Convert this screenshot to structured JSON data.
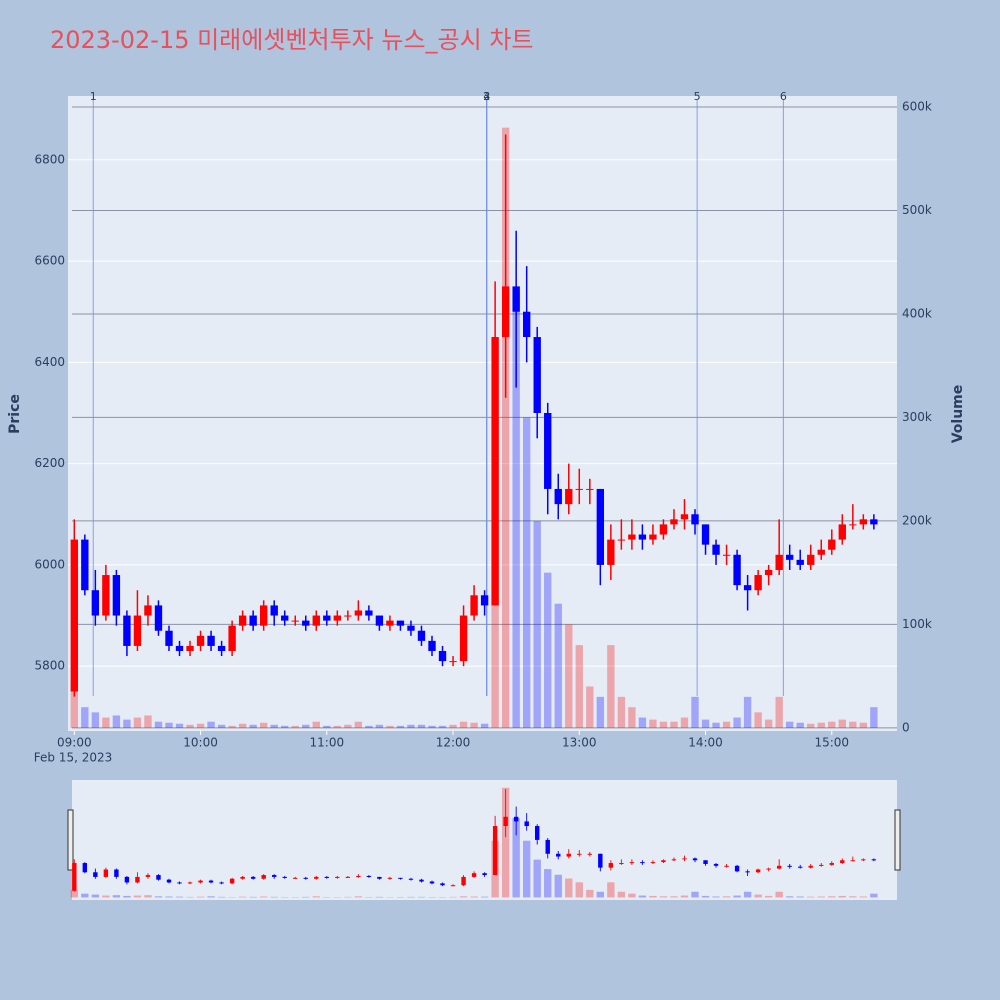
{
  "chart_data": {
    "type": "candlestick",
    "title": "2023-02-15 미래에셋벤처투자 뉴스_공시 차트",
    "y_label": "Price",
    "y2_label": "Volume",
    "x_date_label": "Feb 15, 2023",
    "up_color": "#ff0000",
    "down_color": "#0000ff",
    "x": [
      "09:00",
      "09:05",
      "09:10",
      "09:15",
      "09:20",
      "09:25",
      "09:30",
      "09:35",
      "09:40",
      "09:45",
      "09:50",
      "09:55",
      "10:00",
      "10:05",
      "10:10",
      "10:15",
      "10:20",
      "10:25",
      "10:30",
      "10:35",
      "10:40",
      "10:45",
      "10:50",
      "10:55",
      "11:00",
      "11:05",
      "11:10",
      "11:15",
      "11:20",
      "11:25",
      "11:30",
      "11:35",
      "11:40",
      "11:45",
      "11:50",
      "11:55",
      "12:00",
      "12:05",
      "12:10",
      "12:15",
      "12:20",
      "12:25",
      "12:30",
      "12:35",
      "12:40",
      "12:45",
      "12:50",
      "12:55",
      "13:00",
      "13:05",
      "13:10",
      "13:15",
      "13:20",
      "13:25",
      "13:30",
      "13:35",
      "13:40",
      "13:45",
      "13:50",
      "13:55",
      "14:00",
      "14:05",
      "14:10",
      "14:15",
      "14:20",
      "14:25",
      "14:30",
      "14:35",
      "14:40",
      "14:45",
      "14:50",
      "14:55",
      "15:00",
      "15:05",
      "15:10",
      "15:15",
      "15:20"
    ],
    "open": [
      5750,
      6050,
      5950,
      5900,
      5980,
      5900,
      5840,
      5900,
      5920,
      5870,
      5840,
      5830,
      5840,
      5860,
      5840,
      5830,
      5880,
      5900,
      5880,
      5920,
      5900,
      5890,
      5890,
      5880,
      5900,
      5890,
      5900,
      5900,
      5910,
      5900,
      5880,
      5890,
      5880,
      5870,
      5850,
      5830,
      5810,
      5810,
      5900,
      5940,
      5920,
      6450,
      6550,
      6500,
      6450,
      6300,
      6150,
      6120,
      6150,
      6150,
      6150,
      6000,
      6050,
      6050,
      6060,
      6050,
      6060,
      6080,
      6090,
      6100,
      6080,
      6040,
      6020,
      6020,
      5960,
      5950,
      5980,
      5990,
      6020,
      6010,
      6000,
      6020,
      6030,
      6050,
      6080,
      6080,
      6090
    ],
    "high": [
      6090,
      6060,
      5990,
      6000,
      5990,
      5910,
      5950,
      5940,
      5930,
      5880,
      5850,
      5850,
      5870,
      5870,
      5850,
      5890,
      5910,
      5910,
      5930,
      5930,
      5910,
      5900,
      5900,
      5910,
      5910,
      5910,
      5910,
      5930,
      5920,
      5900,
      5900,
      5890,
      5890,
      5880,
      5860,
      5840,
      5820,
      5920,
      5960,
      5950,
      6560,
      6850,
      6660,
      6590,
      6470,
      6320,
      6180,
      6200,
      6190,
      6170,
      6150,
      6080,
      6090,
      6090,
      6080,
      6080,
      6090,
      6110,
      6130,
      6110,
      6080,
      6050,
      6040,
      6030,
      5980,
      5990,
      6000,
      6090,
      6040,
      6030,
      6040,
      6050,
      6070,
      6100,
      6120,
      6100,
      6100
    ],
    "low": [
      5740,
      5940,
      5880,
      5890,
      5880,
      5820,
      5830,
      5880,
      5860,
      5830,
      5820,
      5820,
      5830,
      5830,
      5820,
      5820,
      5870,
      5870,
      5870,
      5880,
      5880,
      5880,
      5870,
      5870,
      5880,
      5880,
      5890,
      5890,
      5890,
      5870,
      5870,
      5870,
      5860,
      5840,
      5820,
      5800,
      5800,
      5800,
      5890,
      5900,
      5920,
      6330,
      6350,
      6400,
      6250,
      6100,
      6090,
      6100,
      6120,
      6120,
      5960,
      5970,
      6030,
      6030,
      6030,
      6040,
      6050,
      6070,
      6070,
      6060,
      6020,
      6000,
      6000,
      5950,
      5910,
      5940,
      5960,
      5980,
      5990,
      5990,
      5990,
      6010,
      6020,
      6040,
      6070,
      6070,
      6070
    ],
    "close": [
      6050,
      5950,
      5900,
      5980,
      5900,
      5840,
      5900,
      5920,
      5870,
      5840,
      5830,
      5840,
      5860,
      5840,
      5830,
      5880,
      5900,
      5880,
      5920,
      5900,
      5890,
      5890,
      5880,
      5900,
      5890,
      5900,
      5900,
      5910,
      5900,
      5880,
      5890,
      5880,
      5870,
      5850,
      5830,
      5810,
      5810,
      5900,
      5940,
      5920,
      6450,
      6550,
      6500,
      6450,
      6300,
      6150,
      6120,
      6150,
      6150,
      6150,
      6000,
      6050,
      6050,
      6060,
      6050,
      6060,
      6080,
      6090,
      6100,
      6080,
      6040,
      6020,
      6020,
      5960,
      5950,
      5980,
      5990,
      6020,
      6010,
      6000,
      6020,
      6030,
      6050,
      6080,
      6080,
      6090,
      6080
    ],
    "volume": [
      40000,
      20000,
      15000,
      10000,
      12000,
      8000,
      10000,
      12000,
      6000,
      5000,
      4000,
      3000,
      4000,
      6000,
      3000,
      2000,
      4000,
      3000,
      5000,
      3000,
      2000,
      2000,
      3000,
      6000,
      2000,
      2000,
      3000,
      6000,
      2000,
      3000,
      2000,
      2000,
      3000,
      3000,
      2000,
      2000,
      3000,
      6000,
      5000,
      4000,
      300000,
      580000,
      420000,
      300000,
      200000,
      150000,
      120000,
      100000,
      80000,
      40000,
      30000,
      80000,
      30000,
      20000,
      10000,
      8000,
      6000,
      6000,
      10000,
      30000,
      8000,
      5000,
      6000,
      10000,
      30000,
      15000,
      8000,
      30000,
      6000,
      5000,
      4000,
      5000,
      6000,
      8000,
      6000,
      5000,
      20000
    ],
    "events": [
      {
        "label": "1",
        "time": "09:09"
      },
      {
        "label": "2",
        "time": "12:16"
      },
      {
        "label": "3",
        "time": "12:16"
      },
      {
        "label": "4",
        "time": "12:16"
      },
      {
        "label": "5",
        "time": "13:56"
      },
      {
        "label": "6",
        "time": "14:37"
      }
    ],
    "xlim": [
      "08:57",
      "15:31"
    ],
    "xticks": [
      "09:00",
      "10:00",
      "11:00",
      "12:00",
      "13:00",
      "14:00",
      "15:00"
    ],
    "ylim": [
      5672,
      6926
    ],
    "yticks": [
      5800,
      6000,
      6200,
      6400,
      6600,
      6800
    ],
    "y2lim": [
      -3000,
      610600
    ],
    "y2ticks": [
      0,
      {
        "value": 100000,
        "label": "100k"
      },
      {
        "value": 200000,
        "label": "200k"
      },
      {
        "value": 300000,
        "label": "300k"
      },
      {
        "value": 400000,
        "label": "400k"
      },
      {
        "value": 500000,
        "label": "500k"
      },
      {
        "value": 600000,
        "label": "600k"
      }
    ],
    "grid": true
  }
}
